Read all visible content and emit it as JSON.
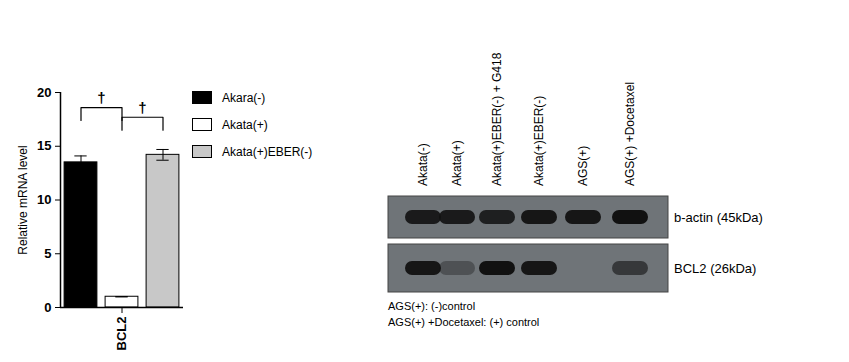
{
  "chart_data": {
    "type": "bar",
    "categories": [
      "BCL2"
    ],
    "y_label": "Relative mRNA level",
    "ylim": [
      0,
      20
    ],
    "yticks": [
      0,
      5,
      10,
      15,
      20
    ],
    "legend": "right",
    "series": [
      {
        "name": "Akara(-)",
        "color": "#000000",
        "values": [
          13.5
        ],
        "errors": [
          0.6
        ]
      },
      {
        "name": "Akata(+)",
        "color": "#ffffff",
        "values": [
          1.0
        ],
        "errors": [
          0
        ]
      },
      {
        "name": "Akata(+)EBER(-)",
        "color": "#c8c8c8",
        "values": [
          14.2
        ],
        "errors": [
          0.5
        ]
      }
    ],
    "annotations": [
      {
        "text": "†",
        "series": [
          "Akara(-)",
          "Akata(+)"
        ]
      },
      {
        "text": "†",
        "series": [
          "Akata(+)",
          "Akata(+)EBER(-)"
        ]
      }
    ]
  },
  "blot": {
    "lanes": [
      "Akata(-)",
      "Akata(+)",
      "Akata(+)EBER(-) + G418",
      "Akata(+)EBER(-)",
      "AGS(+)",
      "AGS(+) +Docetaxel"
    ],
    "rows": [
      {
        "label": "b-actin (45kDa)",
        "intensity": [
          0.9,
          0.9,
          0.85,
          0.95,
          0.95,
          1.0
        ]
      },
      {
        "label": "BCL2 (26kDa)",
        "intensity": [
          0.95,
          0.35,
          1.0,
          0.95,
          0,
          0.6
        ]
      }
    ],
    "notes": [
      "AGS(+): (-)control",
      "AGS(+) +Docetaxel: (+) control"
    ]
  }
}
